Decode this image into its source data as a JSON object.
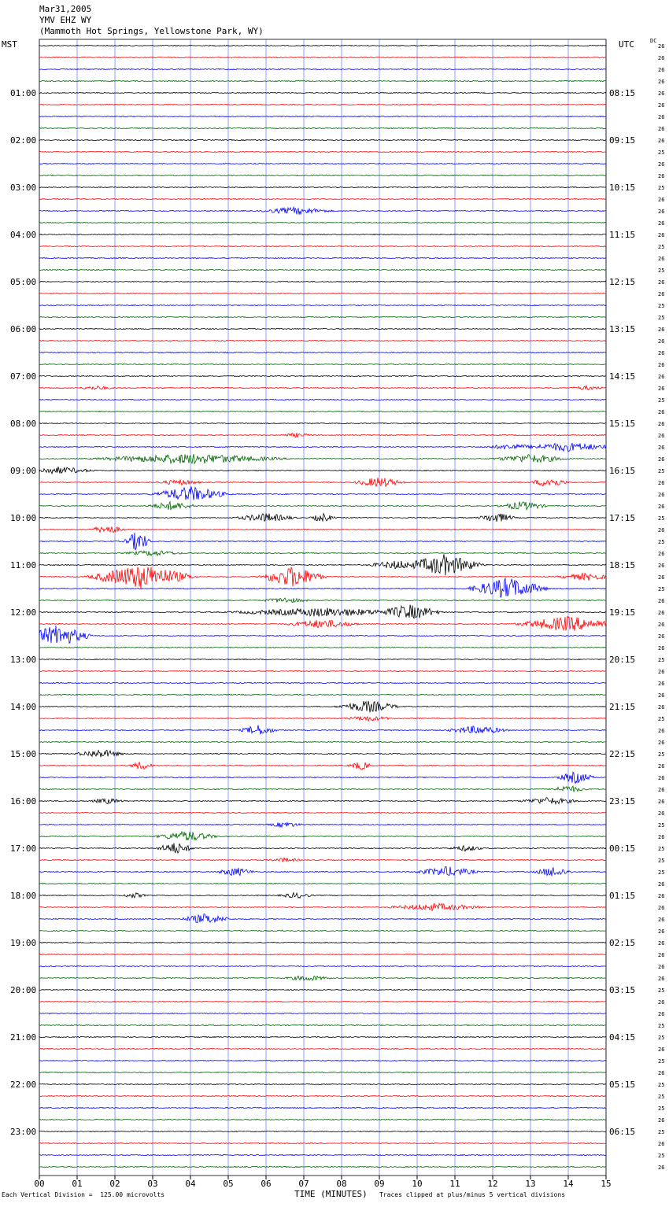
{
  "header": {
    "date": "Mar31,2005",
    "station": "YMV EHZ WY",
    "location": "(Mammoth Hot Springs, Yellowstone Park, WY)"
  },
  "left_axis_label": "MST",
  "right_axis_label": "UTC",
  "dc_label": "DC",
  "footer": {
    "scale_note": "Each Vertical Division =  125.00 microvolts",
    "xlabel": "TIME (MINUTES)",
    "clip_note": "Traces clipped at plus/minus 5 vertical divisions"
  },
  "colors": {
    "trace_cycle": [
      "#000000",
      "#ff0000",
      "#0000ff",
      "#006600"
    ],
    "grid": "#4060ff"
  },
  "chart_data": {
    "type": "line",
    "title": "",
    "xlabel": "TIME (MINUTES)",
    "xlim": [
      0,
      15
    ],
    "x_ticks": [
      "00",
      "01",
      "02",
      "03",
      "04",
      "05",
      "06",
      "07",
      "08",
      "09",
      "10",
      "11",
      "12",
      "13",
      "14",
      "15"
    ],
    "rows_per_hour": 4,
    "row_count": 96,
    "left_hour_labels": [
      "01:00",
      "02:00",
      "03:00",
      "04:00",
      "05:00",
      "06:00",
      "07:00",
      "08:00",
      "09:00",
      "10:00",
      "11:00",
      "12:00",
      "13:00",
      "14:00",
      "15:00",
      "16:00",
      "17:00",
      "18:00",
      "19:00",
      "20:00",
      "21:00",
      "22:00",
      "23:00"
    ],
    "right_hour_labels": [
      "08:15",
      "09:15",
      "10:15",
      "11:15",
      "12:15",
      "13:15",
      "14:15",
      "15:15",
      "16:15",
      "17:15",
      "18:15",
      "19:15",
      "20:15",
      "21:15",
      "22:15",
      "23:15",
      "00:15",
      "01:15",
      "02:15",
      "03:15",
      "04:15",
      "05:15",
      "06:15"
    ],
    "dc_offsets": [
      26,
      26,
      26,
      26,
      26,
      26,
      26,
      26,
      26,
      25,
      26,
      26,
      25,
      26,
      26,
      26,
      26,
      25,
      26,
      25,
      26,
      26,
      25,
      25,
      26,
      26,
      26,
      26,
      26,
      26,
      25,
      26,
      26,
      26,
      26,
      26,
      25,
      26,
      26,
      26,
      25,
      26,
      25,
      26,
      26,
      26,
      25,
      26,
      26,
      26,
      26,
      26,
      25,
      26,
      26,
      26,
      26,
      25,
      26,
      26,
      25,
      26,
      26,
      26,
      26,
      26,
      25,
      26,
      25,
      25,
      25,
      26,
      26,
      26,
      26,
      26,
      26,
      26,
      26,
      26,
      25,
      26,
      26,
      25,
      25,
      26,
      25,
      26,
      25,
      25,
      25,
      26,
      25,
      26,
      25,
      26
    ],
    "events": [
      {
        "row": 14,
        "minute": 6.8,
        "amplitude": 5,
        "duration": 1.2
      },
      {
        "row": 29,
        "minute": 1.5,
        "amplitude": 3,
        "duration": 0.6
      },
      {
        "row": 29,
        "minute": 14.5,
        "amplitude": 3,
        "duration": 0.6
      },
      {
        "row": 33,
        "minute": 6.8,
        "amplitude": 3,
        "duration": 0.6
      },
      {
        "row": 34,
        "minute": 12.5,
        "amplitude": 4,
        "duration": 1.0
      },
      {
        "row": 34,
        "minute": 14,
        "amplitude": 6,
        "duration": 1.6
      },
      {
        "row": 35,
        "minute": 4,
        "amplitude": 7,
        "duration": 3.0
      },
      {
        "row": 35,
        "minute": 13,
        "amplitude": 6,
        "duration": 1.2
      },
      {
        "row": 36,
        "minute": 0.5,
        "amplitude": 5,
        "duration": 1.2
      },
      {
        "row": 37,
        "minute": 3.7,
        "amplitude": 4,
        "duration": 0.8
      },
      {
        "row": 37,
        "minute": 9,
        "amplitude": 7,
        "duration": 0.8
      },
      {
        "row": 37,
        "minute": 13.5,
        "amplitude": 7,
        "duration": 0.6
      },
      {
        "row": 38,
        "minute": 4,
        "amplitude": 10,
        "duration": 1.2
      },
      {
        "row": 39,
        "minute": 3.5,
        "amplitude": 6,
        "duration": 0.8
      },
      {
        "row": 39,
        "minute": 12.8,
        "amplitude": 6,
        "duration": 0.8
      },
      {
        "row": 40,
        "minute": 6,
        "amplitude": 6,
        "duration": 1.0
      },
      {
        "row": 40,
        "minute": 7.5,
        "amplitude": 6,
        "duration": 0.4
      },
      {
        "row": 40,
        "minute": 12.1,
        "amplitude": 7,
        "duration": 0.6
      },
      {
        "row": 41,
        "minute": 1.8,
        "amplitude": 6,
        "duration": 0.6
      },
      {
        "row": 42,
        "minute": 2.6,
        "amplitude": 14,
        "duration": 0.4
      },
      {
        "row": 43,
        "minute": 3,
        "amplitude": 4,
        "duration": 1.0
      },
      {
        "row": 44,
        "minute": 9.5,
        "amplitude": 6,
        "duration": 1.0
      },
      {
        "row": 44,
        "minute": 10.7,
        "amplitude": 14,
        "duration": 1.2
      },
      {
        "row": 45,
        "minute": 2.7,
        "amplitude": 16,
        "duration": 1.6
      },
      {
        "row": 45,
        "minute": 6.7,
        "amplitude": 14,
        "duration": 1.0
      },
      {
        "row": 45,
        "minute": 14.5,
        "amplitude": 5,
        "duration": 1.0
      },
      {
        "row": 46,
        "minute": 12.4,
        "amplitude": 14,
        "duration": 1.2
      },
      {
        "row": 47,
        "minute": 6.5,
        "amplitude": 4,
        "duration": 0.8
      },
      {
        "row": 48,
        "minute": 7.5,
        "amplitude": 6,
        "duration": 3.0
      },
      {
        "row": 48,
        "minute": 9.8,
        "amplitude": 10,
        "duration": 1.0
      },
      {
        "row": 49,
        "minute": 7.5,
        "amplitude": 6,
        "duration": 1.2
      },
      {
        "row": 49,
        "minute": 14,
        "amplitude": 10,
        "duration": 1.6
      },
      {
        "row": 50,
        "minute": 0.5,
        "amplitude": 14,
        "duration": 1.0
      },
      {
        "row": 56,
        "minute": 8.7,
        "amplitude": 8,
        "duration": 1.0
      },
      {
        "row": 57,
        "minute": 8.7,
        "amplitude": 4,
        "duration": 0.8
      },
      {
        "row": 58,
        "minute": 5.8,
        "amplitude": 7,
        "duration": 0.6
      },
      {
        "row": 58,
        "minute": 11.6,
        "amplitude": 6,
        "duration": 1.0
      },
      {
        "row": 60,
        "minute": 1.6,
        "amplitude": 6,
        "duration": 0.8
      },
      {
        "row": 61,
        "minute": 2.7,
        "amplitude": 6,
        "duration": 0.4
      },
      {
        "row": 61,
        "minute": 8.5,
        "amplitude": 6,
        "duration": 0.4
      },
      {
        "row": 62,
        "minute": 14.2,
        "amplitude": 8,
        "duration": 0.6
      },
      {
        "row": 63,
        "minute": 14,
        "amplitude": 5,
        "duration": 0.6
      },
      {
        "row": 64,
        "minute": 1.8,
        "amplitude": 4,
        "duration": 0.6
      },
      {
        "row": 64,
        "minute": 13.5,
        "amplitude": 5,
        "duration": 1.0
      },
      {
        "row": 66,
        "minute": 6.5,
        "amplitude": 4,
        "duration": 0.6
      },
      {
        "row": 67,
        "minute": 3.9,
        "amplitude": 7,
        "duration": 1.0
      },
      {
        "row": 68,
        "minute": 3.6,
        "amplitude": 8,
        "duration": 0.6
      },
      {
        "row": 68,
        "minute": 11.3,
        "amplitude": 4,
        "duration": 0.6
      },
      {
        "row": 69,
        "minute": 6.5,
        "amplitude": 3,
        "duration": 0.6
      },
      {
        "row": 70,
        "minute": 5.2,
        "amplitude": 6,
        "duration": 0.6
      },
      {
        "row": 70,
        "minute": 10.8,
        "amplitude": 7,
        "duration": 1.0
      },
      {
        "row": 70,
        "minute": 13.6,
        "amplitude": 7,
        "duration": 0.6
      },
      {
        "row": 72,
        "minute": 2.5,
        "amplitude": 4,
        "duration": 0.4
      },
      {
        "row": 72,
        "minute": 6.8,
        "amplitude": 4,
        "duration": 0.6
      },
      {
        "row": 73,
        "minute": 10.5,
        "amplitude": 5,
        "duration": 1.6
      },
      {
        "row": 74,
        "minute": 4.4,
        "amplitude": 7,
        "duration": 0.8
      },
      {
        "row": 79,
        "minute": 7.1,
        "amplitude": 4,
        "duration": 0.8
      }
    ]
  }
}
